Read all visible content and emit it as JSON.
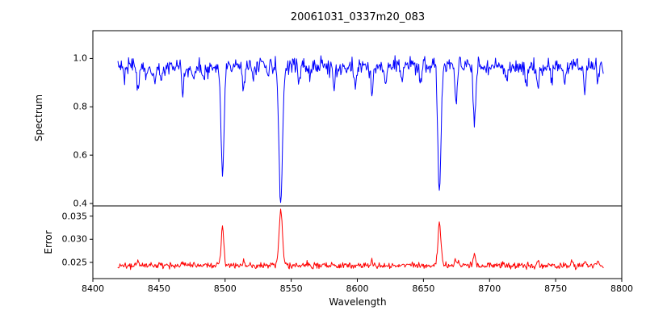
{
  "chart_data": {
    "type": "line",
    "title": "20061031_0337m20_083",
    "xlabel": "Wavelength",
    "xlim": [
      8400,
      8800
    ],
    "xticks": [
      8400,
      8450,
      8500,
      8550,
      8600,
      8650,
      8700,
      8750,
      8800
    ],
    "xtick_labels": [
      "8400",
      "8450",
      "8500",
      "8550",
      "8600",
      "8650",
      "8700",
      "8750",
      "8800"
    ],
    "data_x_range": [
      8419,
      8786
    ],
    "sample_step": 0.5,
    "seed": 20061031,
    "layout": {
      "panels": "two vertically stacked panels with shared x-axis",
      "grid": false,
      "legend": "none"
    },
    "panels": [
      {
        "name": "spectrum",
        "ylabel": "Spectrum",
        "line_color": "#0000ff",
        "ylim": [
          0.39,
          1.115
        ],
        "yticks": [
          0.4,
          0.6,
          0.8,
          1.0
        ],
        "ytick_labels": [
          "0.4",
          "0.6",
          "0.8",
          "1.0"
        ],
        "continuum": 0.968,
        "continuum_wave_amp": 0.006,
        "continuum_wave_period": 130,
        "noise_sigma": 0.017,
        "lines": [
          {
            "c": 8498.0,
            "d": 0.455,
            "w": 1.1
          },
          {
            "c": 8542.1,
            "d": 0.565,
            "w": 1.4
          },
          {
            "c": 8662.1,
            "d": 0.525,
            "w": 1.2
          },
          {
            "c": 8674.7,
            "d": 0.16,
            "w": 0.9
          },
          {
            "c": 8688.6,
            "d": 0.225,
            "w": 1.0
          },
          {
            "c": 8424.0,
            "d": 0.05,
            "w": 0.8
          },
          {
            "c": 8434.0,
            "d": 0.1,
            "w": 0.8
          },
          {
            "c": 8440.0,
            "d": 0.06,
            "w": 0.8
          },
          {
            "c": 8446.5,
            "d": 0.07,
            "w": 0.8
          },
          {
            "c": 8452.0,
            "d": 0.05,
            "w": 0.8
          },
          {
            "c": 8468.0,
            "d": 0.1,
            "w": 0.8
          },
          {
            "c": 8476.0,
            "d": 0.06,
            "w": 0.8
          },
          {
            "c": 8484.0,
            "d": 0.05,
            "w": 0.8
          },
          {
            "c": 8514.2,
            "d": 0.1,
            "w": 0.8
          },
          {
            "c": 8521.0,
            "d": 0.06,
            "w": 0.8
          },
          {
            "c": 8532.0,
            "d": 0.05,
            "w": 0.8
          },
          {
            "c": 8556.0,
            "d": 0.06,
            "w": 0.8
          },
          {
            "c": 8564.0,
            "d": 0.05,
            "w": 0.8
          },
          {
            "c": 8582.5,
            "d": 0.08,
            "w": 0.8
          },
          {
            "c": 8598.0,
            "d": 0.06,
            "w": 0.8
          },
          {
            "c": 8611.0,
            "d": 0.11,
            "w": 0.8
          },
          {
            "c": 8621.5,
            "d": 0.08,
            "w": 0.8
          },
          {
            "c": 8634.0,
            "d": 0.06,
            "w": 0.8
          },
          {
            "c": 8648.0,
            "d": 0.09,
            "w": 0.8
          },
          {
            "c": 8713.0,
            "d": 0.07,
            "w": 0.8
          },
          {
            "c": 8728.0,
            "d": 0.06,
            "w": 0.8
          },
          {
            "c": 8736.5,
            "d": 0.08,
            "w": 0.8
          },
          {
            "c": 8747.0,
            "d": 0.06,
            "w": 0.8
          },
          {
            "c": 8757.0,
            "d": 0.07,
            "w": 0.8
          },
          {
            "c": 8772.0,
            "d": 0.1,
            "w": 0.8
          },
          {
            "c": 8782.0,
            "d": 0.06,
            "w": 0.8
          }
        ]
      },
      {
        "name": "error",
        "ylabel": "Error",
        "line_color": "#ff0000",
        "ylim": [
          0.0215,
          0.0372
        ],
        "yticks": [
          0.025,
          0.03,
          0.035
        ],
        "ytick_labels": [
          "0.025",
          "0.030",
          "0.035"
        ],
        "baseline": 0.0243,
        "noise_sigma": 0.00035,
        "peaks": [
          {
            "c": 8498.0,
            "a": 0.0085,
            "w": 1.0
          },
          {
            "c": 8542.1,
            "a": 0.0118,
            "w": 1.3
          },
          {
            "c": 8662.1,
            "a": 0.0092,
            "w": 1.1
          },
          {
            "c": 8674.7,
            "a": 0.0015,
            "w": 0.9
          },
          {
            "c": 8688.6,
            "a": 0.0028,
            "w": 0.9
          },
          {
            "c": 8434.0,
            "a": 0.0008,
            "w": 0.8
          },
          {
            "c": 8468.0,
            "a": 0.0007,
            "w": 0.8
          },
          {
            "c": 8514.2,
            "a": 0.0007,
            "w": 0.8
          },
          {
            "c": 8611.0,
            "a": 0.0009,
            "w": 0.8
          },
          {
            "c": 8736.5,
            "a": 0.0007,
            "w": 0.8
          },
          {
            "c": 8762.0,
            "a": 0.0008,
            "w": 0.8
          },
          {
            "c": 8772.0,
            "a": 0.0012,
            "w": 0.8
          },
          {
            "c": 8782.0,
            "a": 0.001,
            "w": 0.8
          }
        ]
      }
    ]
  }
}
